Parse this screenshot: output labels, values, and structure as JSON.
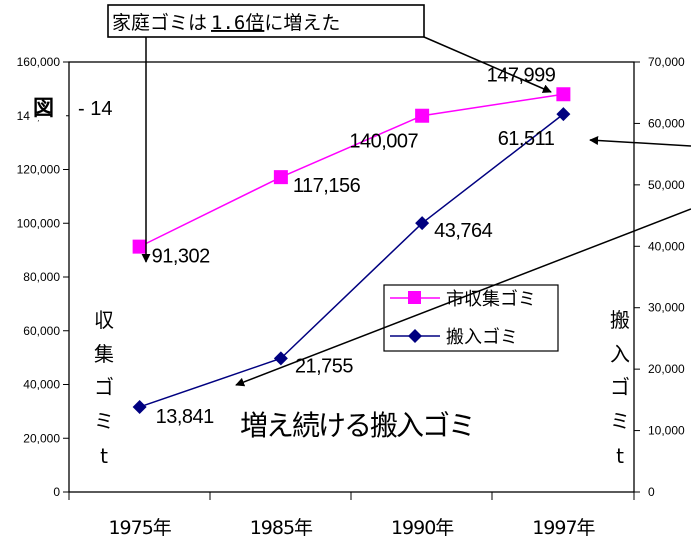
{
  "figure": {
    "label_kanji": "図",
    "label_num": "- 14"
  },
  "callout": {
    "text_before": "家庭ゴミは",
    "text_underlined": "1.6倍",
    "text_after": "に増えた"
  },
  "big_annotation": "増え続ける搬入ゴミ",
  "left_axis_title": [
    "収",
    "集",
    "ゴ",
    "ミ",
    "t"
  ],
  "right_axis_title": [
    "搬",
    "入",
    "ゴ",
    "ミ",
    "t"
  ],
  "colors": {
    "collected": "#ff00ff",
    "brought_in": "#000080"
  },
  "chart_data": {
    "type": "line",
    "categories": [
      "1975年",
      "1985年",
      "1990年",
      "1997年"
    ],
    "series": [
      {
        "name": "市収集ゴミ",
        "axis": "left",
        "marker": "square",
        "values": [
          91302,
          117156,
          140007,
          147999
        ],
        "labels": [
          "91,302",
          "117,156",
          "140,007",
          "147,999"
        ]
      },
      {
        "name": "搬入ゴミ",
        "axis": "right",
        "marker": "diamond",
        "values": [
          13841,
          21755,
          43764,
          61511
        ],
        "labels": [
          "13,841",
          "21,755",
          "43,764",
          "61,511"
        ]
      }
    ],
    "left_axis": {
      "min": 0,
      "max": 160000,
      "step": 20000,
      "tick_labels": [
        "0",
        "20,000",
        "40,000",
        "60,000",
        "80,000",
        "100,000",
        "120,000",
        "140,000",
        "160,000"
      ]
    },
    "right_axis": {
      "min": 0,
      "max": 70000,
      "step": 10000,
      "tick_labels": [
        "0",
        "10,000",
        "20,000",
        "30,000",
        "40,000",
        "50,000",
        "60,000",
        "70,000"
      ]
    },
    "legend_position": "center-right",
    "grid": false
  }
}
